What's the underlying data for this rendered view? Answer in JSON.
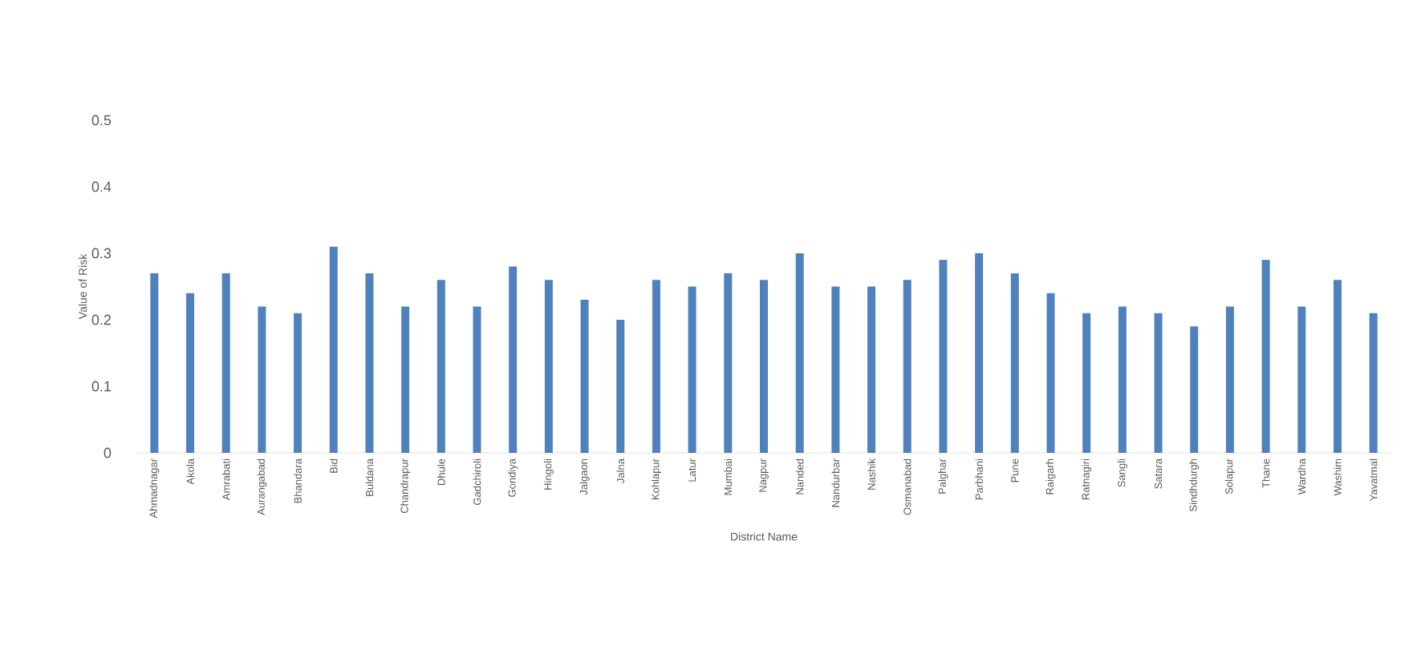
{
  "chart_data": {
    "type": "bar",
    "xlabel": "District Name",
    "ylabel": "Value of Risk",
    "categories": [
      "Ahmadnagar",
      "Akola",
      "Amrabati",
      "Aurangabad",
      "Bhandara",
      "Bid",
      "Buldana",
      "Chandrapur",
      "Dhule",
      "Gadchiroli",
      "Gondiya",
      "Hingoli",
      "Jalgaon",
      "Jalna",
      "Kohlapur",
      "Latur",
      "Mumbai",
      "Nagpur",
      "Nanded",
      "Nandurbar",
      "Nashik",
      "Osmanabad",
      "Palghar",
      "Parbhani",
      "Pune",
      "Raigarh",
      "Ratnagiri",
      "Sangli",
      "Satara",
      "Sindhdurgh",
      "Solapur",
      "Thane",
      "Wardha",
      "Washim",
      "Yavatmal"
    ],
    "values": [
      0.27,
      0.24,
      0.27,
      0.22,
      0.21,
      0.31,
      0.27,
      0.22,
      0.26,
      0.22,
      0.28,
      0.26,
      0.23,
      0.2,
      0.26,
      0.25,
      0.27,
      0.26,
      0.3,
      0.25,
      0.25,
      0.26,
      0.29,
      0.3,
      0.27,
      0.24,
      0.21,
      0.22,
      0.21,
      0.19,
      0.22,
      0.29,
      0.22,
      0.26,
      0.21
    ],
    "color": "#4f81bd",
    "ylim": [
      0,
      0.5
    ],
    "yticks": [
      0,
      0.1,
      0.2,
      0.3,
      0.4,
      0.5
    ]
  }
}
